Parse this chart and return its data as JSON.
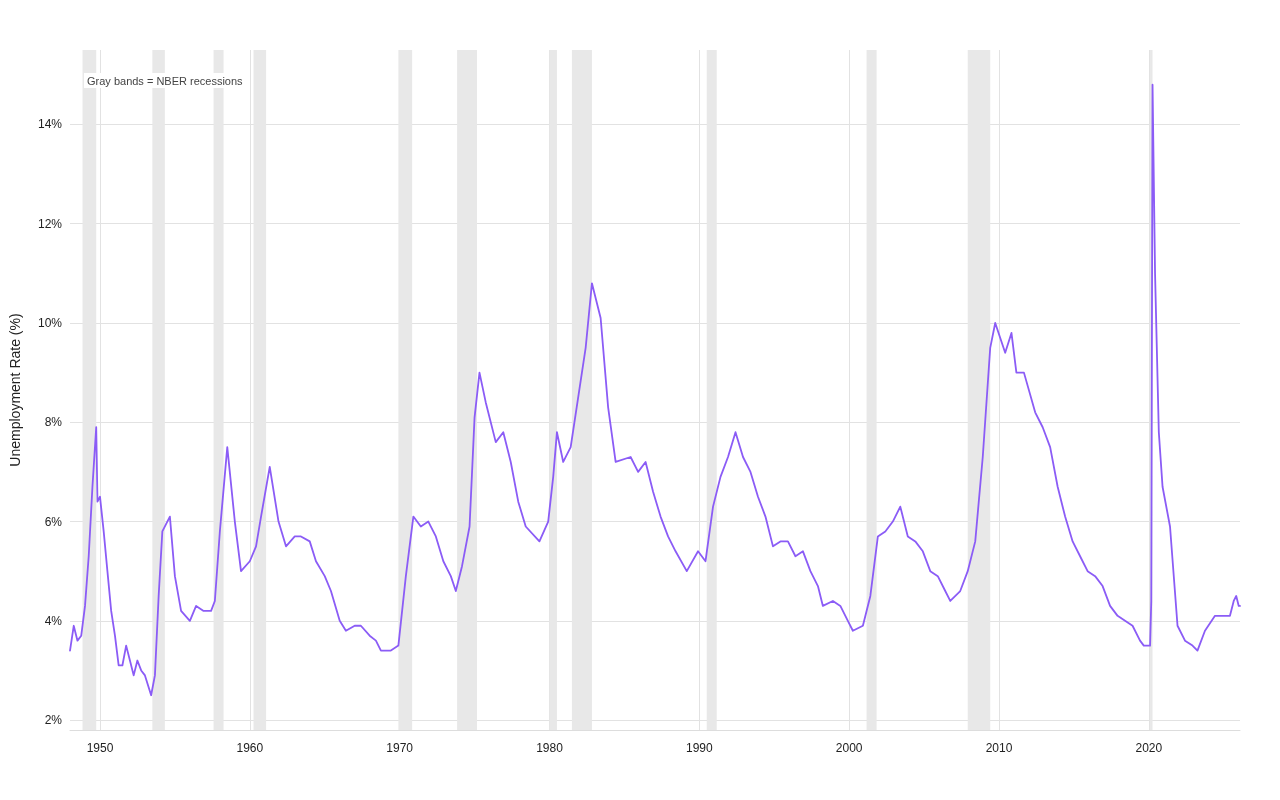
{
  "chart_data": {
    "type": "line",
    "ylabel": "Unemployment Rate (%)",
    "annotations": [
      "Gray bands = NBER recessions"
    ],
    "xlim": [
      "1948-01",
      "2026-02"
    ],
    "xticks": [
      "1950",
      "1960",
      "1970",
      "1980",
      "1990",
      "2000",
      "2010",
      "2020"
    ],
    "ylim": [
      1.8,
      15.5
    ],
    "yticks": [
      {
        "value": 2,
        "label": "2%"
      },
      {
        "value": 4,
        "label": "4%"
      },
      {
        "value": 6,
        "label": "6%"
      },
      {
        "value": 8,
        "label": "8%"
      },
      {
        "value": 10,
        "label": "10%"
      },
      {
        "value": 12,
        "label": "12%"
      },
      {
        "value": 14,
        "label": "14%"
      }
    ],
    "grid": true,
    "marker": "none",
    "line_style": "solid",
    "x": [
      "1948-01",
      "1948-04",
      "1948-07",
      "1948-10",
      "1949-01",
      "1949-04",
      "1949-07",
      "1949-10",
      "1949-11",
      "1950-01",
      "1950-04",
      "1950-07",
      "1950-10",
      "1951-01",
      "1951-04",
      "1951-07",
      "1951-10",
      "1952-01",
      "1952-04",
      "1952-07",
      "1952-10",
      "1953-01",
      "1953-06",
      "1953-09",
      "1953-12",
      "1954-03",
      "1954-09",
      "1955-01",
      "1955-06",
      "1956-01",
      "1956-06",
      "1956-12",
      "1957-06",
      "1957-09",
      "1958-01",
      "1958-07",
      "1959-01",
      "1959-06",
      "1960-01",
      "1960-06",
      "1960-10",
      "1961-05",
      "1961-12",
      "1962-06",
      "1963-01",
      "1963-06",
      "1964-01",
      "1964-06",
      "1965-01",
      "1965-06",
      "1966-01",
      "1966-06",
      "1967-01",
      "1967-06",
      "1968-01",
      "1968-06",
      "1968-10",
      "1969-06",
      "1969-12",
      "1970-06",
      "1970-12",
      "1971-06",
      "1971-12",
      "1972-06",
      "1972-12",
      "1973-06",
      "1973-10",
      "1974-03",
      "1974-09",
      "1975-01",
      "1975-05",
      "1975-10",
      "1976-06",
      "1976-12",
      "1977-06",
      "1977-12",
      "1978-06",
      "1979-05",
      "1979-12",
      "1980-04",
      "1980-07",
      "1980-12",
      "1981-06",
      "1981-12",
      "1982-06",
      "1982-11",
      "1983-06",
      "1983-12",
      "1984-06",
      "1985-06",
      "1985-12",
      "1986-06",
      "1986-12",
      "1987-06",
      "1987-12",
      "1988-06",
      "1989-03",
      "1989-12",
      "1990-06",
      "1990-12",
      "1991-06",
      "1991-12",
      "1992-06",
      "1992-12",
      "1993-06",
      "1993-12",
      "1994-06",
      "1994-12",
      "1995-06",
      "1995-12",
      "1996-06",
      "1996-12",
      "1997-06",
      "1997-12",
      "1998-04",
      "1998-12",
      "1999-06",
      "1999-12",
      "2000-04",
      "2000-12",
      "2001-06",
      "2001-12",
      "2002-06",
      "2002-12",
      "2003-06",
      "2003-12",
      "2004-06",
      "2004-12",
      "2005-06",
      "2005-12",
      "2006-06",
      "2006-10",
      "2007-06",
      "2007-12",
      "2008-06",
      "2008-12",
      "2009-06",
      "2009-10",
      "2010-06",
      "2010-11",
      "2011-03",
      "2011-09",
      "2012-06",
      "2012-12",
      "2013-06",
      "2013-12",
      "2014-06",
      "2014-12",
      "2015-06",
      "2015-12",
      "2016-06",
      "2016-12",
      "2017-06",
      "2017-12",
      "2018-06",
      "2018-12",
      "2019-06",
      "2019-09",
      "2020-02",
      "2020-03",
      "2020-04",
      "2020-06",
      "2020-09",
      "2020-12",
      "2021-06",
      "2021-12",
      "2022-06",
      "2022-12",
      "2023-04",
      "2023-10",
      "2024-06",
      "2024-12",
      "2025-06",
      "2025-09",
      "2025-11",
      "2026-01",
      "2026-02"
    ],
    "series": [
      {
        "color": "#8b5cf6",
        "values": [
          3.4,
          3.9,
          3.6,
          3.7,
          4.3,
          5.3,
          6.7,
          7.9,
          6.4,
          6.5,
          5.8,
          5.0,
          4.2,
          3.7,
          3.1,
          3.1,
          3.5,
          3.2,
          2.9,
          3.2,
          3.0,
          2.9,
          2.5,
          2.9,
          4.5,
          5.8,
          6.1,
          4.9,
          4.2,
          4.0,
          4.3,
          4.2,
          4.2,
          4.4,
          5.8,
          7.5,
          6.0,
          5.0,
          5.2,
          5.5,
          6.1,
          7.1,
          6.0,
          5.5,
          5.7,
          5.7,
          5.6,
          5.2,
          4.9,
          4.6,
          4.0,
          3.8,
          3.9,
          3.9,
          3.7,
          3.6,
          3.4,
          3.4,
          3.5,
          4.9,
          6.1,
          5.9,
          6.0,
          5.7,
          5.2,
          4.9,
          4.6,
          5.1,
          5.9,
          8.1,
          9.0,
          8.4,
          7.6,
          7.8,
          7.2,
          6.4,
          5.9,
          5.6,
          6.0,
          6.9,
          7.8,
          7.2,
          7.5,
          8.5,
          9.5,
          10.8,
          10.1,
          8.3,
          7.2,
          7.3,
          7.0,
          7.2,
          6.6,
          6.1,
          5.7,
          5.4,
          5.0,
          5.4,
          5.2,
          6.3,
          6.9,
          7.3,
          7.8,
          7.3,
          7.0,
          6.5,
          6.1,
          5.5,
          5.6,
          5.6,
          5.3,
          5.4,
          5.0,
          4.7,
          4.3,
          4.4,
          4.3,
          4.0,
          3.8,
          3.9,
          4.5,
          5.7,
          5.8,
          6.0,
          6.3,
          5.7,
          5.6,
          5.4,
          5.0,
          4.9,
          4.6,
          4.4,
          4.6,
          5.0,
          5.6,
          7.3,
          9.5,
          10.0,
          9.4,
          9.8,
          9.0,
          9.0,
          8.2,
          7.9,
          7.5,
          6.7,
          6.1,
          5.6,
          5.3,
          5.0,
          4.9,
          4.7,
          4.3,
          4.1,
          4.0,
          3.9,
          3.6,
          3.5,
          3.5,
          4.4,
          14.8,
          11.0,
          7.8,
          6.7,
          5.9,
          3.9,
          3.6,
          3.5,
          3.4,
          3.8,
          4.1,
          4.1,
          4.1,
          4.4,
          4.5,
          4.3,
          4.3
        ]
      }
    ],
    "bands": [
      {
        "axis": "x",
        "from": "1948-11",
        "to": "1949-10",
        "color": "#e8e8e8"
      },
      {
        "axis": "x",
        "from": "1953-07",
        "to": "1954-05",
        "color": "#e8e8e8"
      },
      {
        "axis": "x",
        "from": "1957-08",
        "to": "1958-04",
        "color": "#e8e8e8"
      },
      {
        "axis": "x",
        "from": "1960-04",
        "to": "1961-02",
        "color": "#e8e8e8"
      },
      {
        "axis": "x",
        "from": "1969-12",
        "to": "1970-11",
        "color": "#e8e8e8"
      },
      {
        "axis": "x",
        "from": "1973-11",
        "to": "1975-03",
        "color": "#e8e8e8"
      },
      {
        "axis": "x",
        "from": "1980-01",
        "to": "1980-07",
        "color": "#e8e8e8"
      },
      {
        "axis": "x",
        "from": "1981-07",
        "to": "1982-11",
        "color": "#e8e8e8"
      },
      {
        "axis": "x",
        "from": "1990-07",
        "to": "1991-03",
        "color": "#e8e8e8"
      },
      {
        "axis": "x",
        "from": "2001-03",
        "to": "2001-11",
        "color": "#e8e8e8"
      },
      {
        "axis": "x",
        "from": "2007-12",
        "to": "2009-06",
        "color": "#e8e8e8"
      },
      {
        "axis": "x",
        "from": "2020-02",
        "to": "2020-04",
        "color": "#e8e8e8"
      }
    ]
  }
}
